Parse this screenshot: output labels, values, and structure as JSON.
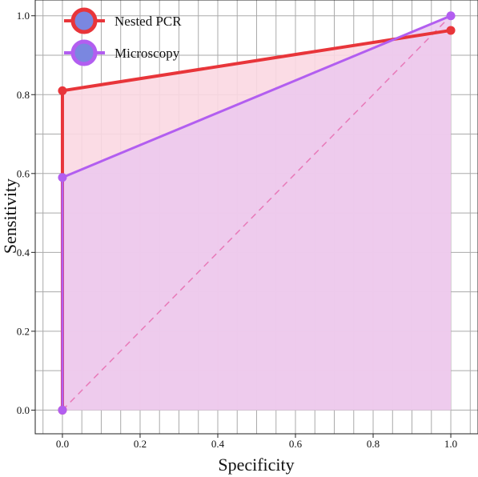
{
  "chart_data": {
    "type": "line",
    "xlabel": "Specificity",
    "ylabel": "Sensitivity",
    "xlim": [
      -0.07,
      1.07
    ],
    "ylim": [
      -0.06,
      1.04
    ],
    "x_ticks": [
      "0.0",
      "0.2",
      "0.4",
      "0.6",
      "0.8",
      "1.0"
    ],
    "y_ticks": [
      "0.0",
      "0.2",
      "0.4",
      "0.6",
      "0.8",
      "1.0"
    ],
    "grid": true,
    "legend_position": "top-left",
    "diagonal_reference": true,
    "series": [
      {
        "name": "Nested PCR",
        "color": "#e8353a",
        "fill": "#fbd8e2",
        "x": [
          0.0,
          0.0,
          1.0
        ],
        "y": [
          0.0,
          0.81,
          0.963
        ]
      },
      {
        "name": "Microscopy",
        "color": "#b25ef0",
        "fill": "#ebc8ee",
        "x": [
          0.0,
          0.0,
          1.0
        ],
        "y": [
          0.0,
          0.59,
          1.0
        ]
      }
    ],
    "diagonal_color": "#e879b8"
  }
}
